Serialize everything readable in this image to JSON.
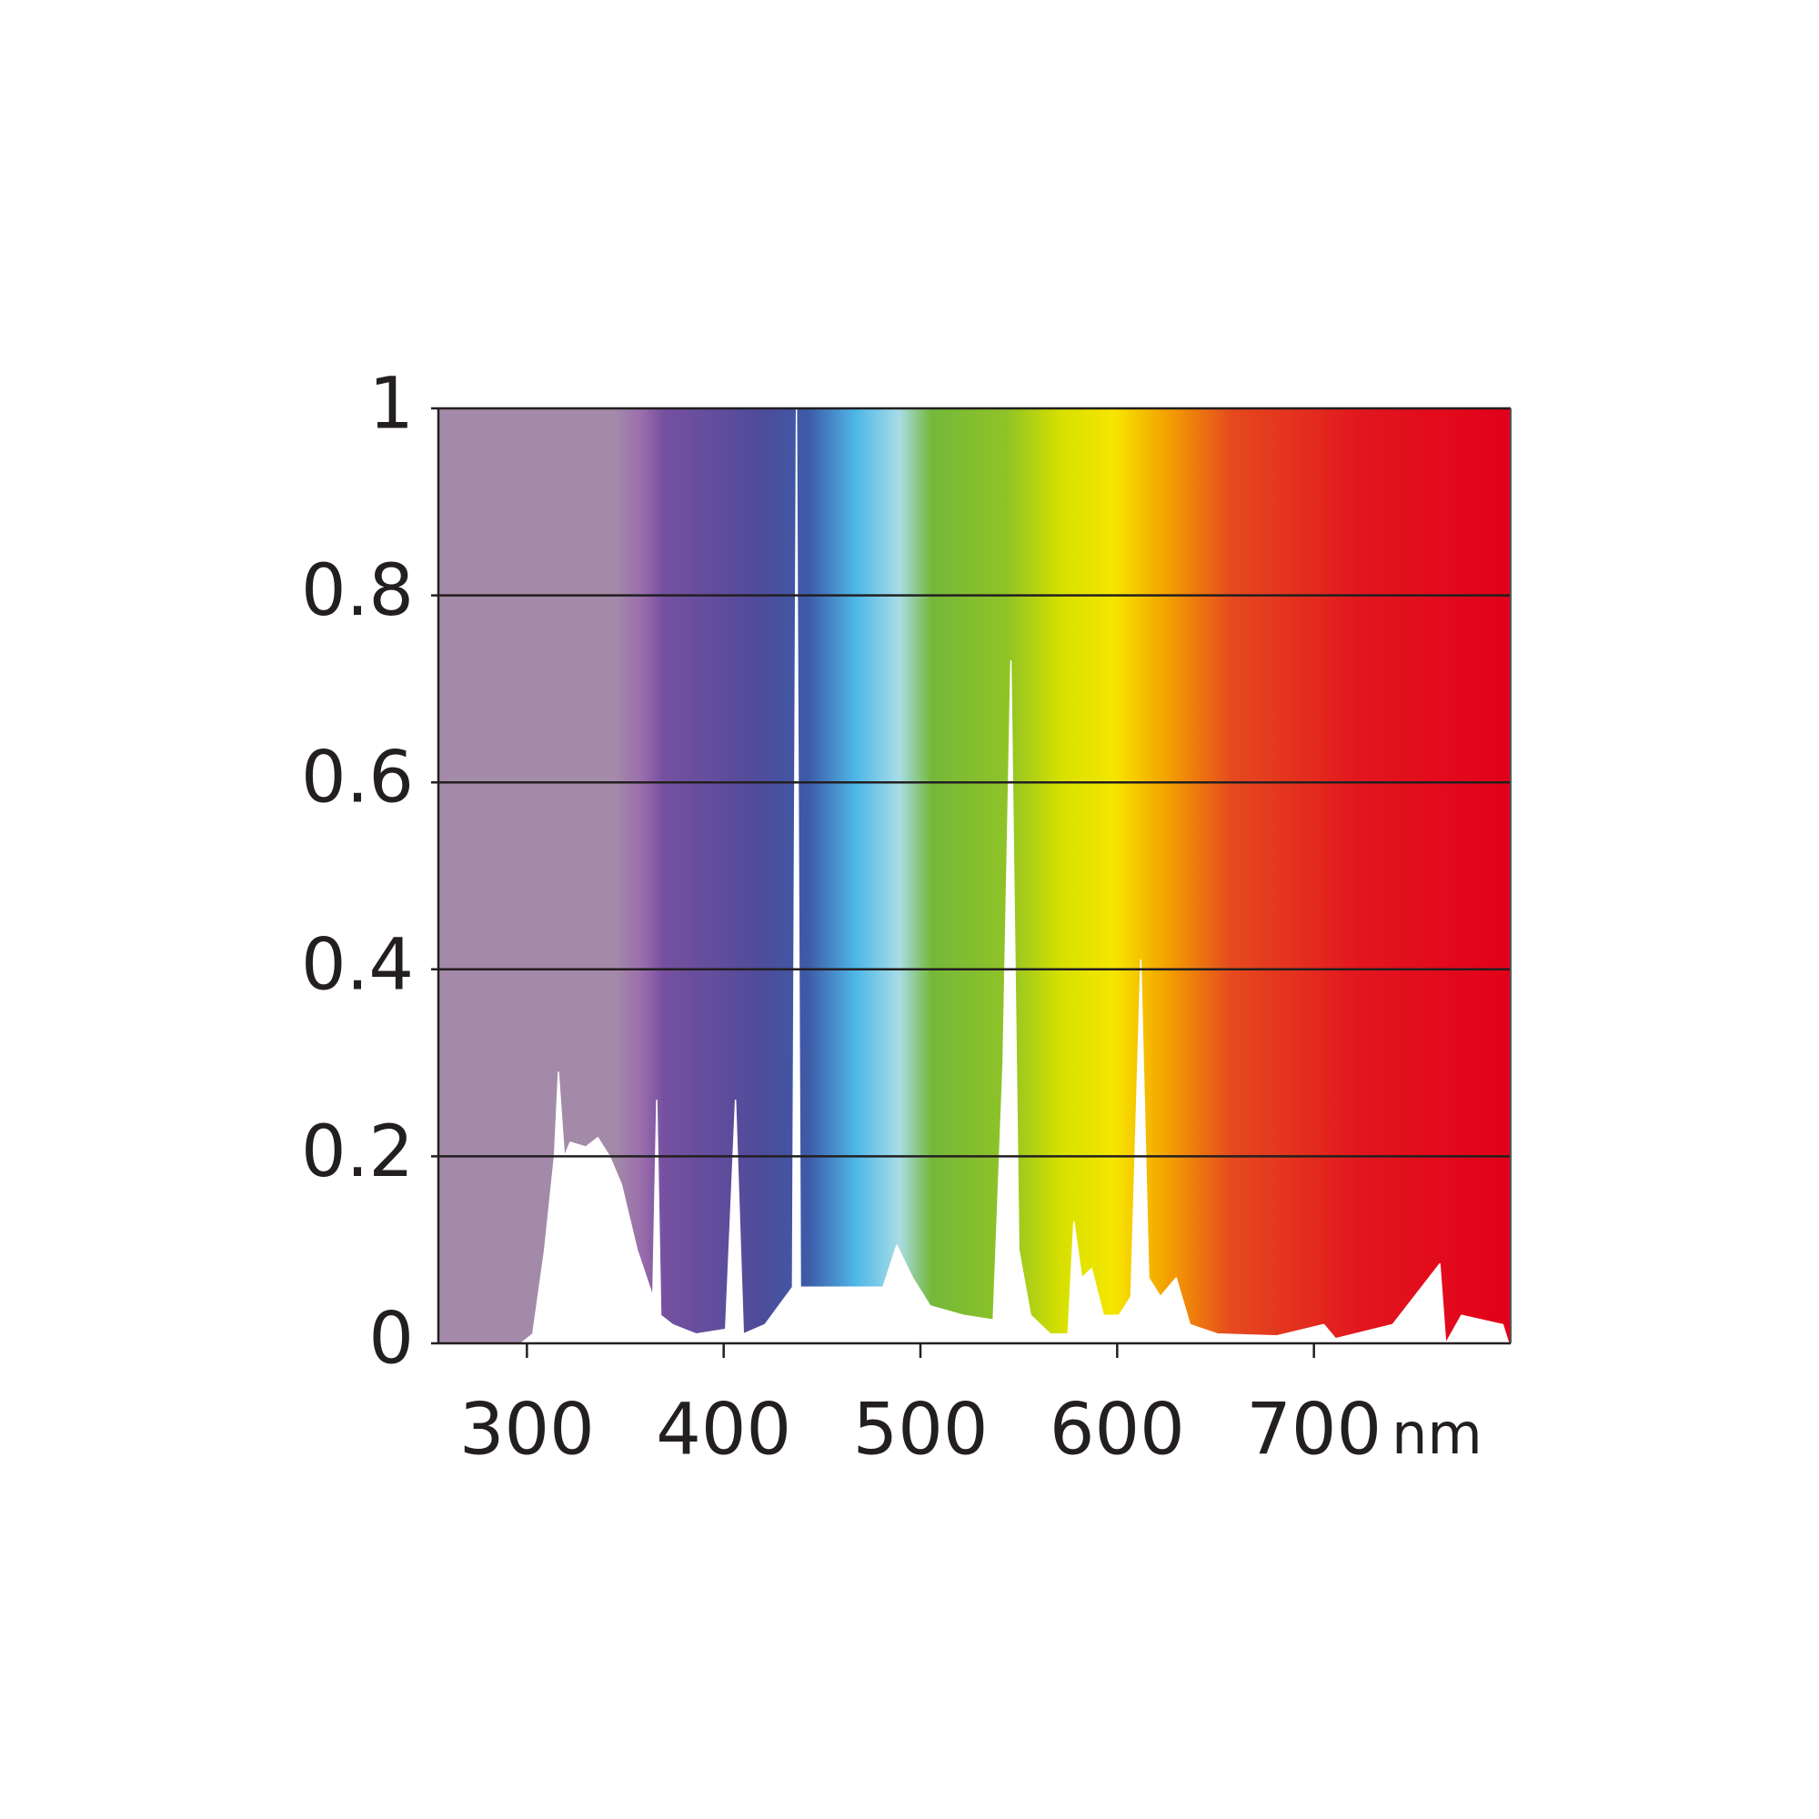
{
  "chart_data": {
    "type": "area",
    "x_label": "nm",
    "xlim": [
      255,
      800
    ],
    "xticks": [
      300,
      400,
      500,
      600,
      700
    ],
    "ylim": [
      0,
      1
    ],
    "yticks": [
      0,
      0.2,
      0.4,
      0.6,
      0.8,
      1
    ],
    "grid": true,
    "color": "#ffffff",
    "x": [
      297,
      303,
      309,
      314,
      316,
      319,
      322,
      330,
      336,
      342,
      348,
      356,
      364,
      366,
      368,
      374,
      386,
      401,
      406,
      410,
      421,
      435,
      437,
      439,
      456,
      481,
      488,
      496,
      505,
      522,
      537,
      542,
      546,
      550,
      556,
      566,
      575,
      578,
      582,
      587,
      593,
      601,
      607,
      612,
      616,
      622,
      630,
      637,
      651,
      681,
      705,
      711,
      740,
      764,
      767,
      775,
      796,
      799
    ],
    "values": [
      0,
      0.01,
      0.1,
      0.2,
      0.29,
      0.2,
      0.215,
      0.21,
      0.22,
      0.2,
      0.17,
      0.1,
      0.05,
      0.26,
      0.03,
      0.02,
      0.01,
      0.015,
      0.26,
      0.01,
      0.02,
      0.06,
      1,
      0.06,
      0.06,
      0.06,
      0.105,
      0.07,
      0.04,
      0.03,
      0.025,
      0.3,
      0.73,
      0.1,
      0.03,
      0.01,
      0.01,
      0.13,
      0.07,
      0.08,
      0.03,
      0.03,
      0.05,
      0.41,
      0.07,
      0.05,
      0.07,
      0.02,
      0.01,
      0.008,
      0.02,
      0.005,
      0.02,
      0.085,
      0,
      0.03,
      0.02,
      0
    ]
  }
}
